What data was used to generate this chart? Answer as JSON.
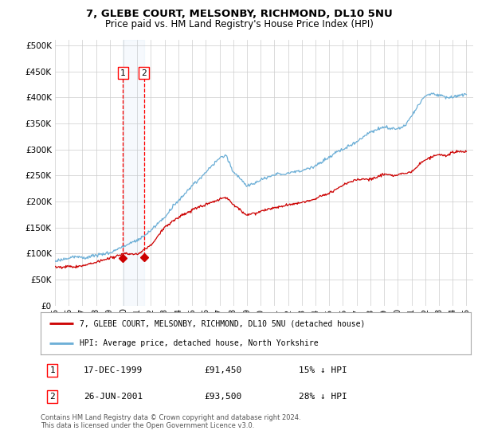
{
  "title1": "7, GLEBE COURT, MELSONBY, RICHMOND, DL10 5NU",
  "title2": "Price paid vs. HM Land Registry's House Price Index (HPI)",
  "ytick_values": [
    0,
    50000,
    100000,
    150000,
    200000,
    250000,
    300000,
    350000,
    400000,
    450000,
    500000
  ],
  "xlim_start": 1995.0,
  "xlim_end": 2025.5,
  "ylim_min": 0,
  "ylim_max": 510000,
  "sale1_date": 1999.96,
  "sale1_price": 91450,
  "sale2_date": 2001.48,
  "sale2_price": 93500,
  "hpi_color": "#6baed6",
  "price_color": "#cc0000",
  "background_color": "#ffffff",
  "grid_color": "#cccccc",
  "legend_label1": "7, GLEBE COURT, MELSONBY, RICHMOND, DL10 5NU (detached house)",
  "legend_label2": "HPI: Average price, detached house, North Yorkshire",
  "footnote": "Contains HM Land Registry data © Crown copyright and database right 2024.\nThis data is licensed under the Open Government Licence v3.0.",
  "table_row1": [
    "1",
    "17-DEC-1999",
    "£91,450",
    "15% ↓ HPI"
  ],
  "table_row2": [
    "2",
    "26-JUN-2001",
    "£93,500",
    "28% ↓ HPI"
  ],
  "xtick_years": [
    1995,
    1996,
    1997,
    1998,
    1999,
    2000,
    2001,
    2002,
    2003,
    2004,
    2005,
    2006,
    2007,
    2008,
    2009,
    2010,
    2011,
    2012,
    2013,
    2014,
    2015,
    2016,
    2017,
    2018,
    2019,
    2020,
    2021,
    2022,
    2023,
    2024,
    2025
  ],
  "hpi_anchors_x": [
    1995,
    1996,
    1997,
    1998,
    1999,
    2000,
    2001,
    2002,
    2003,
    2004,
    2005,
    2006,
    2007,
    2007.5,
    2008,
    2009,
    2009.5,
    2010,
    2011,
    2012,
    2013,
    2014,
    2015,
    2016,
    2017,
    2018,
    2018.5,
    2019,
    2020,
    2020.5,
    2021,
    2022,
    2022.5,
    2023,
    2023.5,
    2024,
    2024.5,
    2025
  ],
  "hpi_anchors_y": [
    85000,
    88000,
    92000,
    97000,
    103000,
    112000,
    125000,
    145000,
    170000,
    200000,
    230000,
    255000,
    285000,
    290000,
    260000,
    235000,
    240000,
    248000,
    255000,
    258000,
    262000,
    272000,
    285000,
    300000,
    315000,
    335000,
    340000,
    345000,
    340000,
    345000,
    365000,
    405000,
    410000,
    405000,
    400000,
    400000,
    405000,
    405000
  ],
  "price_anchors_x": [
    1995,
    1996,
    1997,
    1998,
    1999,
    2000,
    2001,
    2002,
    2003,
    2004,
    2005,
    2006,
    2007,
    2007.5,
    2008,
    2009,
    2010,
    2011,
    2012,
    2013,
    2014,
    2015,
    2016,
    2017,
    2018,
    2019,
    2020,
    2021,
    2022,
    2023,
    2023.5,
    2024,
    2025
  ],
  "price_anchors_y": [
    73000,
    76000,
    80000,
    85000,
    92000,
    97000,
    97000,
    115000,
    150000,
    170000,
    185000,
    195000,
    205000,
    210000,
    195000,
    175000,
    183000,
    190000,
    195000,
    198000,
    205000,
    215000,
    230000,
    240000,
    240000,
    250000,
    248000,
    255000,
    280000,
    290000,
    285000,
    295000,
    295000
  ]
}
